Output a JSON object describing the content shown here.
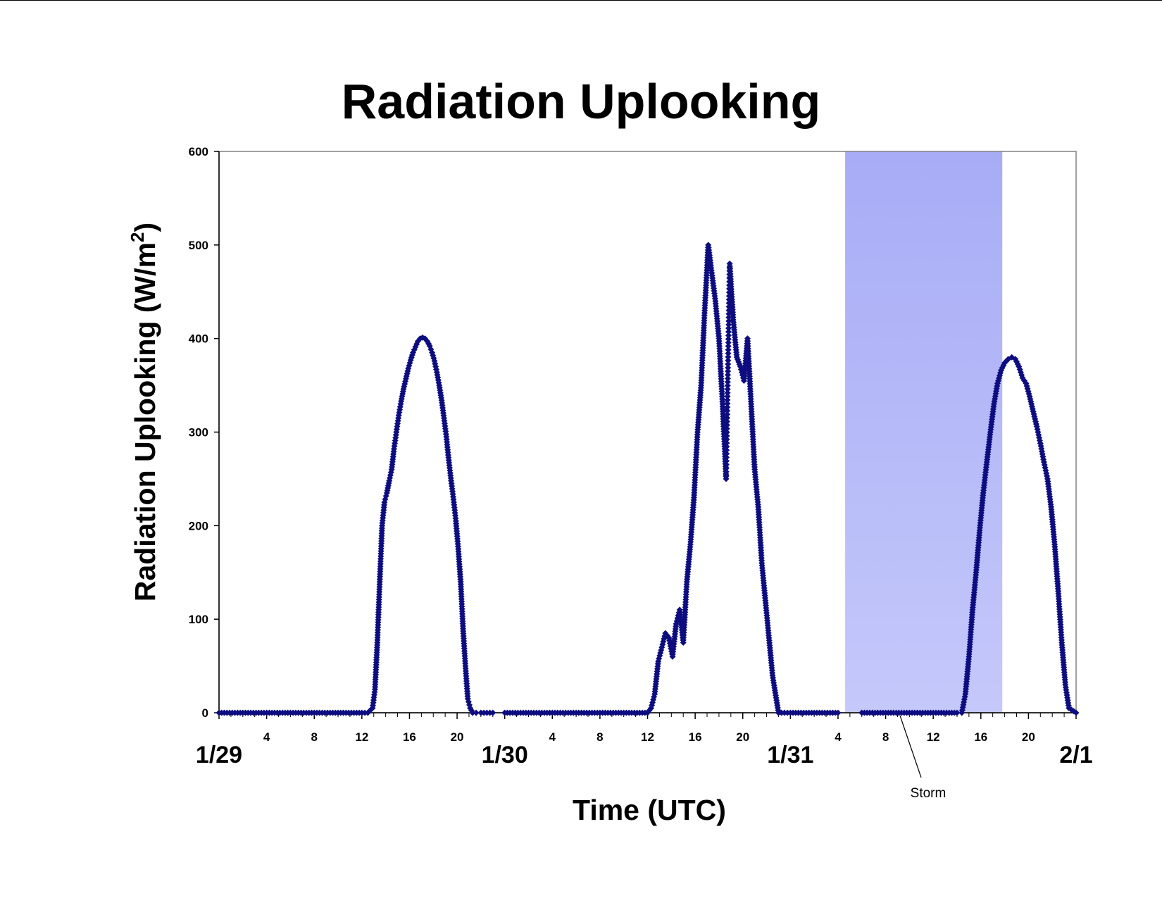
{
  "chart_data": {
    "type": "scatter",
    "title": "Radiation Uplooking",
    "xlabel": "Time (UTC)",
    "ylabel": {
      "main": "Radiation Uplooking (W/m",
      "sup": "2",
      "close": ")"
    },
    "ylim": [
      0,
      600
    ],
    "yticks": [
      0,
      100,
      200,
      300,
      400,
      500,
      600
    ],
    "xlim": [
      0,
      72
    ],
    "x_unit": "hours UTC since 1/29 00:00",
    "hour_tick_labels": [
      "4",
      "8",
      "12",
      "16",
      "20"
    ],
    "day_labels": [
      {
        "label": "1/29",
        "hour": 0
      },
      {
        "label": "1/30",
        "hour": 24
      },
      {
        "label": "1/31",
        "hour": 48
      },
      {
        "label": "2/1",
        "hour": 72
      }
    ],
    "grid": false,
    "legend": "none",
    "marker": "diamond",
    "marker_color": "#0d0d80",
    "shaded_region": {
      "x_start": 52.6,
      "x_end": 65.8,
      "color": "#aab0f5",
      "label": "Storm"
    },
    "series": [
      {
        "x": [
          0,
          2,
          4,
          6,
          8,
          10,
          12,
          12.5,
          12.9,
          13.1,
          13.3,
          13.5,
          13.7,
          13.9,
          14.1,
          14.3,
          14.5,
          14.7,
          14.9,
          15.1,
          15.3,
          15.5,
          15.7,
          15.9,
          16.1,
          16.3,
          16.5,
          16.7,
          16.9,
          17.1,
          17.3,
          17.5,
          17.7,
          17.9,
          18.1,
          18.3,
          18.5,
          18.7,
          18.9,
          19.1,
          19.3,
          19.5,
          19.7,
          19.9,
          20.1,
          20.3,
          20.5,
          20.7,
          20.9,
          21.1,
          21.3,
          21.6,
          22,
          23
        ],
        "y": [
          0,
          0,
          0,
          0,
          0,
          0,
          0,
          0,
          5,
          25,
          75,
          140,
          200,
          225,
          235,
          248,
          260,
          282,
          300,
          318,
          333,
          346,
          357,
          368,
          377,
          385,
          391,
          397,
          400,
          401,
          400,
          397,
          392,
          385,
          376,
          364,
          350,
          334,
          315,
          295,
          270,
          248,
          228,
          205,
          175,
          140,
          90,
          50,
          15,
          5,
          0,
          0,
          0,
          0
        ]
      },
      {
        "x": [
          24,
          26,
          28,
          30,
          32,
          34,
          36,
          36.3,
          36.6,
          36.9,
          37.2,
          37.5,
          37.8,
          38.1,
          38.4,
          38.7,
          39,
          39.3,
          39.6,
          39.9,
          40.2,
          40.5,
          40.8,
          41.1,
          41.4,
          41.7,
          42,
          42.3,
          42.6,
          42.9,
          43.2,
          43.5,
          43.8,
          44.1,
          44.4,
          44.7,
          45,
          45.3,
          45.6,
          45.9,
          46.2,
          46.5,
          47,
          48,
          50,
          52
        ],
        "y": [
          0,
          0,
          0,
          0,
          0,
          0,
          0,
          5,
          20,
          55,
          70,
          85,
          80,
          60,
          95,
          110,
          75,
          140,
          180,
          230,
          300,
          350,
          430,
          500,
          470,
          440,
          400,
          330,
          250,
          480,
          420,
          380,
          370,
          355,
          400,
          330,
          260,
          220,
          160,
          120,
          80,
          40,
          0,
          0,
          0,
          0
        ]
      },
      {
        "x": [
          54,
          56,
          58,
          60,
          62,
          62.4,
          62.7,
          63,
          63.3,
          63.6,
          63.9,
          64.2,
          64.5,
          64.8,
          65.1,
          65.4,
          65.7,
          66,
          66.3,
          66.6,
          66.9,
          67.2,
          67.5,
          67.8,
          68.1,
          68.4,
          68.7,
          69,
          69.3,
          69.6,
          69.9,
          70.2,
          70.5,
          70.8,
          71.1,
          71.4,
          72
        ],
        "y": [
          0,
          0,
          0,
          0,
          0,
          0,
          20,
          60,
          110,
          150,
          195,
          235,
          268,
          300,
          330,
          352,
          366,
          374,
          378,
          380,
          378,
          370,
          358,
          352,
          338,
          322,
          306,
          288,
          268,
          250,
          220,
          180,
          130,
          75,
          30,
          5,
          0
        ]
      }
    ]
  }
}
